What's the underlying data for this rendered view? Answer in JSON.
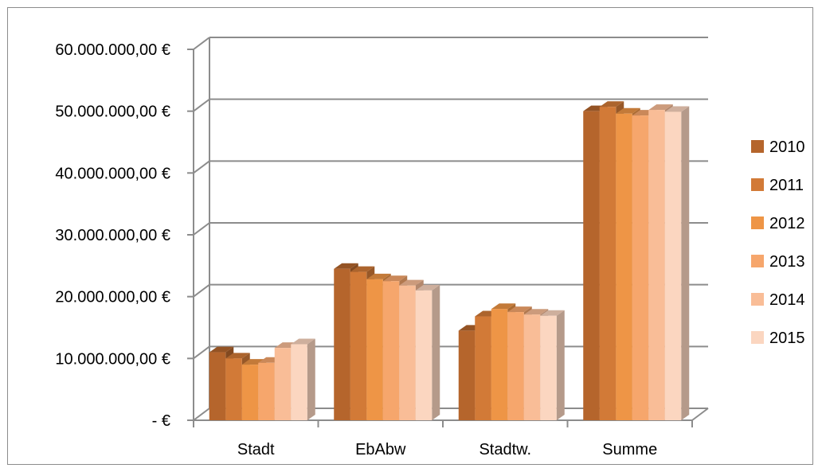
{
  "chart_data": {
    "type": "bar",
    "title": "",
    "xlabel": "",
    "ylabel": "",
    "categories": [
      "Stadt",
      "EbAbw",
      "Stadtw.",
      "Summe"
    ],
    "y_tick_labels": [
      "-  €",
      "10.000.000,00 €",
      "20.000.000,00 €",
      "30.000.000,00 €",
      "40.000.000,00 €",
      "50.000.000,00 €",
      "60.000.000,00 €"
    ],
    "ylim": [
      0,
      60000000
    ],
    "ytick_step": 10000000,
    "grid": true,
    "legend_position": "right",
    "three_d": true,
    "series": [
      {
        "name": "2010",
        "color": "#b5652c",
        "values": [
          11000000,
          24500000,
          14500000,
          50000000
        ]
      },
      {
        "name": "2011",
        "color": "#d27a37",
        "values": [
          10000000,
          24000000,
          16800000,
          50700000
        ]
      },
      {
        "name": "2012",
        "color": "#ee9546",
        "values": [
          9000000,
          22800000,
          18000000,
          49600000
        ]
      },
      {
        "name": "2013",
        "color": "#f6a66c",
        "values": [
          9300000,
          22500000,
          17500000,
          49300000
        ]
      },
      {
        "name": "2014",
        "color": "#f9bd97",
        "values": [
          11700000,
          21800000,
          17100000,
          50200000
        ]
      },
      {
        "name": "2015",
        "color": "#fbd6c0",
        "values": [
          12300000,
          21000000,
          16900000,
          49900000
        ]
      }
    ]
  }
}
